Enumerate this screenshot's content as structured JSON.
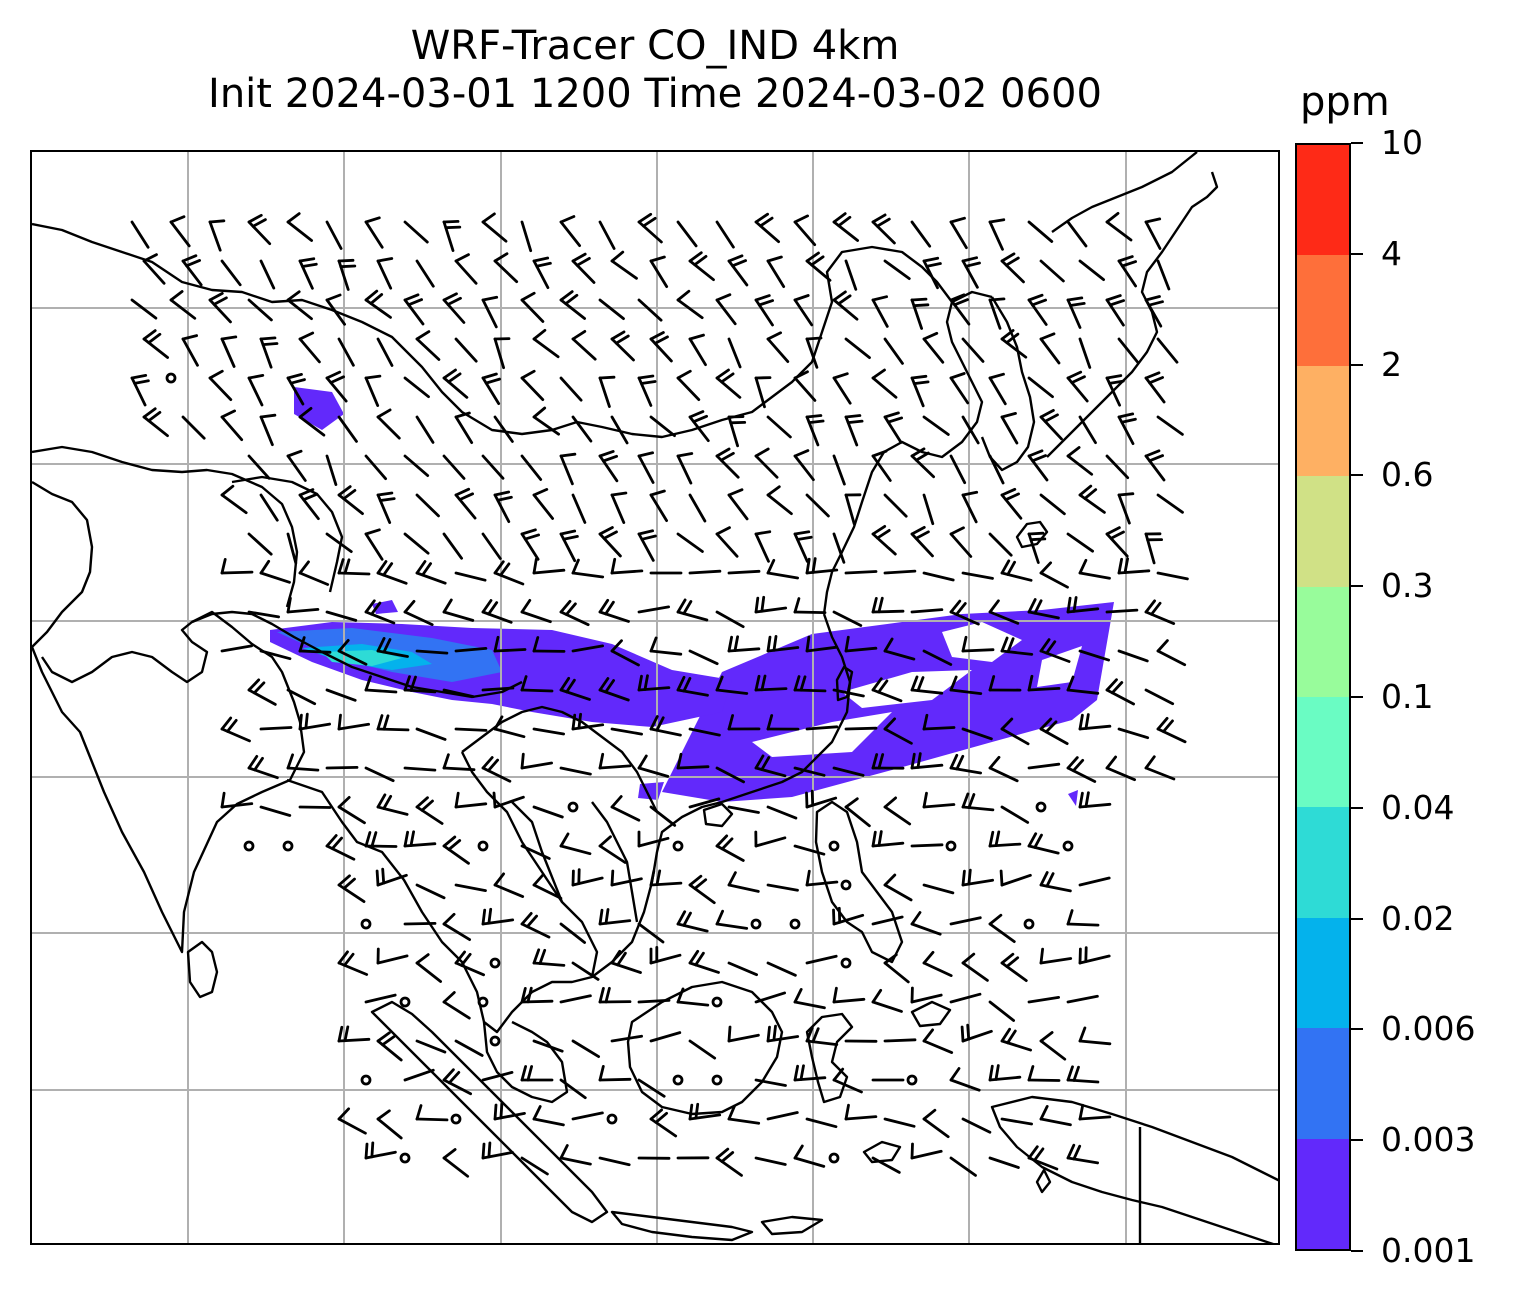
{
  "title_line1": "WRF-Tracer CO_IND 4km",
  "title_line2": "Init 2024-03-01 1200 Time 2024-03-02 0600",
  "colorbar": {
    "unit": "ppm",
    "levels": [
      "0.001",
      "0.003",
      "0.006",
      "0.02",
      "0.04",
      "0.1",
      "0.3",
      "0.6",
      "2",
      "4",
      "10"
    ],
    "colors": [
      "#6229fb",
      "#3273f3",
      "#04b2ec",
      "#2edbd6",
      "#6afcc3",
      "#98fc9b",
      "#d0e186",
      "#feb063",
      "#fe6f3a",
      "#fe2a17"
    ]
  },
  "map": {
    "gridlines": true,
    "coastline_color": "#000000",
    "grid_color": "#b0b0b0",
    "wind_barbs": true,
    "tracer": {
      "variable": "CO_IND",
      "levels_shown": [
        "0.001",
        "0.003",
        "0.006",
        "0.02",
        "0.04"
      ]
    }
  }
}
